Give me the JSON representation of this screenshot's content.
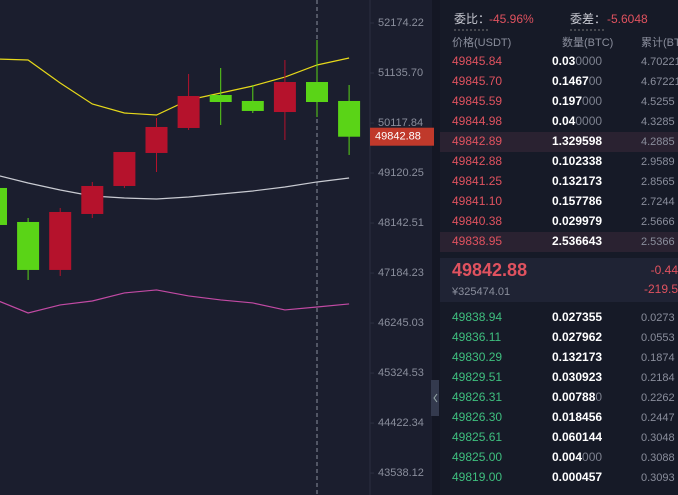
{
  "chart_data": {
    "type": "candlestick",
    "log_scale": true,
    "ylim": [
      43156,
      52659
    ],
    "yticks": [
      52174.22,
      {
        "value": 51135.7,
        "label": "51135.70"
      },
      50117.84,
      49120.25,
      48142.51,
      47184.23,
      46245.03,
      45324.53,
      44422.34,
      43538.12
    ],
    "up_color": "#b5122c",
    "down_color": "#5ad417",
    "candles": {
      "open": [
        48826,
        48163,
        47243,
        48318,
        48865,
        49518,
        50018,
        50686,
        50564,
        50340,
        50951,
        50564
      ],
      "high": [
        48826,
        48240,
        48435,
        48944,
        49537,
        50219,
        51116,
        51239,
        50890,
        51404,
        51819,
        50890
      ],
      "low": [
        48105,
        47053,
        47129,
        48240,
        48826,
        49141,
        49978,
        50078,
        50320,
        49777,
        50240,
        49478
      ],
      "close": [
        48105,
        47243,
        48357,
        48865,
        49537,
        50038,
        50665,
        50543,
        50361,
        50951,
        50543,
        49842.88
      ]
    },
    "lines": [
      {
        "color": "#e6d81a",
        "values": [
          51425,
          51404,
          50931,
          50503,
          50320,
          50280,
          50584,
          50726,
          50869,
          51053,
          51301,
          51445
        ]
      },
      {
        "color": "#c9cbd2",
        "values": [
          49082,
          48924,
          48786,
          48669,
          48629,
          48610,
          48649,
          48708,
          48767,
          48845,
          48944,
          49022
        ]
      },
      {
        "color": "#c24aa4",
        "values": [
          46677,
          46433,
          46583,
          46657,
          46808,
          46865,
          46752,
          46677,
          46620,
          46490,
          46545,
          46602
        ]
      }
    ],
    "last_price": 49842.88
  },
  "order_book": {
    "ratio_label": "委比：",
    "ratio": "-45.96%",
    "diff_label": "委差：",
    "diff": "-5.6048",
    "columns": [
      "价格(USDT)",
      "数量(BTC)",
      "累计(BTC"
    ],
    "asks": [
      [
        "49845.84",
        "0.030000",
        "4.70221"
      ],
      [
        "49845.70",
        "0.146700",
        "4.67221"
      ],
      [
        "49845.59",
        "0.197000",
        "4.5255"
      ],
      [
        "49844.98",
        "0.040000",
        "4.3285"
      ],
      [
        "49842.89",
        "1.329598",
        "4.2885"
      ],
      [
        "49842.88",
        "0.102338",
        "2.9589"
      ],
      [
        "49841.25",
        "0.132173",
        "2.8565"
      ],
      [
        "49841.10",
        "0.157786",
        "2.7244"
      ],
      [
        "49840.38",
        "0.029979",
        "2.5666"
      ],
      [
        "49838.95",
        "2.536643",
        "2.5366"
      ]
    ],
    "last_price": "49842.88",
    "cny_price": "¥325474.01",
    "change": "-0.44",
    "change_amount": "-219.5",
    "bids": [
      [
        "49838.94",
        "0.027355",
        "0.0273"
      ],
      [
        "49836.11",
        "0.027962",
        "0.0553"
      ],
      [
        "49830.29",
        "0.132173",
        "0.1874"
      ],
      [
        "49829.51",
        "0.030923",
        "0.2184"
      ],
      [
        "49826.31",
        "0.007880",
        "0.2262"
      ],
      [
        "49826.30",
        "0.018456",
        "0.2447"
      ],
      [
        "49825.61",
        "0.060144",
        "0.3048"
      ],
      [
        "49825.00",
        "0.004000",
        "0.3088"
      ],
      [
        "49819.00",
        "0.000457",
        "0.3093"
      ]
    ]
  }
}
